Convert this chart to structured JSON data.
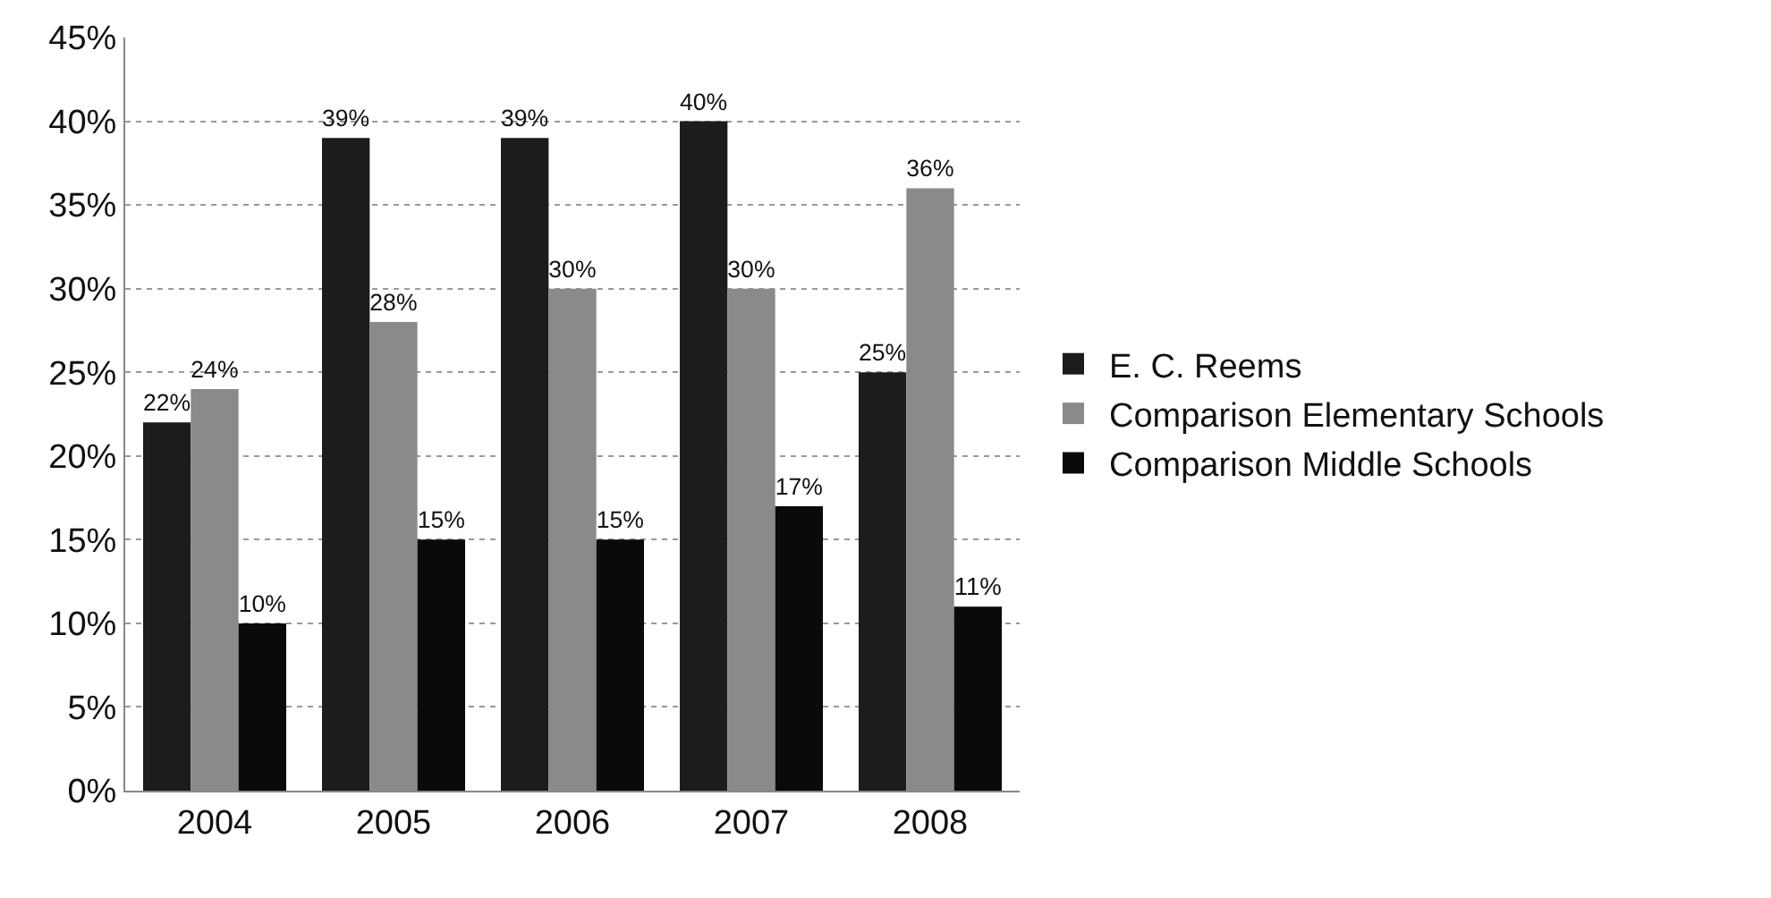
{
  "chart_data": {
    "type": "bar",
    "categories": [
      "2004",
      "2005",
      "2006",
      "2007",
      "2008"
    ],
    "series": [
      {
        "name": "E. C. Reems",
        "color": "#1c1c1c",
        "values": [
          22,
          39,
          39,
          40,
          25
        ],
        "value_labels": [
          "22%",
          "39%",
          "39%",
          "40%",
          "25%"
        ]
      },
      {
        "name": "Comparison Elementary Schools",
        "color": "#8a8a8a",
        "values": [
          24,
          28,
          30,
          30,
          36
        ],
        "value_labels": [
          "24%",
          "28%",
          "30%",
          "30%",
          "36%"
        ]
      },
      {
        "name": "Comparison Middle Schools",
        "color": "#0a0a0a",
        "values": [
          10,
          15,
          15,
          17,
          11
        ],
        "value_labels": [
          "10%",
          "15%",
          "15%",
          "17%",
          "11%"
        ]
      }
    ],
    "ylim": [
      0,
      45
    ],
    "yticks": [
      {
        "value": 0,
        "label": "0%"
      },
      {
        "value": 5,
        "label": "5%"
      },
      {
        "value": 10,
        "label": "10%"
      },
      {
        "value": 15,
        "label": "15%"
      },
      {
        "value": 20,
        "label": "20%"
      },
      {
        "value": 25,
        "label": "25%"
      },
      {
        "value": 30,
        "label": "30%"
      },
      {
        "value": 35,
        "label": "35%"
      },
      {
        "value": 40,
        "label": "40%"
      },
      {
        "value": 45,
        "label": "45%"
      }
    ],
    "grid": "y",
    "legend": "right"
  }
}
